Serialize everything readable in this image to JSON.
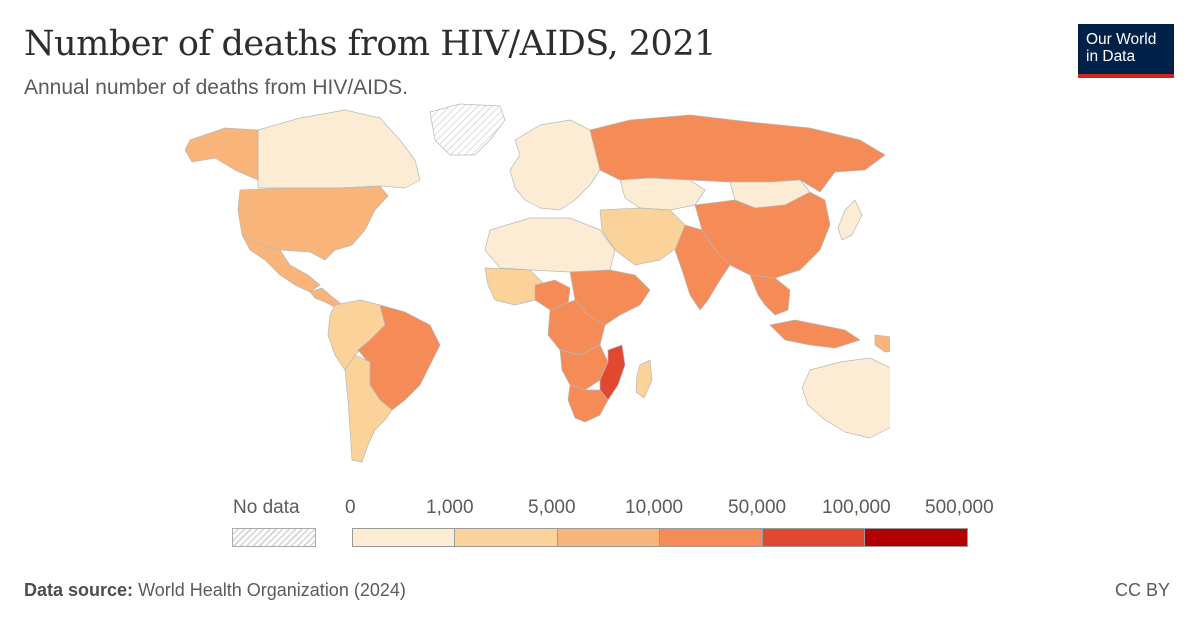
{
  "header": {
    "title": "Number of deaths from HIV/AIDS, 2021",
    "subtitle": "Annual number of deaths from HIV/AIDS."
  },
  "logo": {
    "line1": "Our World",
    "line2": "in Data"
  },
  "legend": {
    "no_data_label": "No data",
    "thresholds": [
      "0",
      "1,000",
      "5,000",
      "10,000",
      "50,000",
      "100,000",
      "500,000"
    ],
    "colors": [
      "#fdecd4",
      "#fbd39a",
      "#f9b47a",
      "#f58b57",
      "#e0482f",
      "#b20000"
    ]
  },
  "footer": {
    "source_label": "Data source:",
    "source_value": "World Health Organization (2024)",
    "license": "CC BY"
  },
  "map": {
    "regions": [
      {
        "name": "canada",
        "color": "#fdecd4"
      },
      {
        "name": "alaska",
        "color": "#f9b47a"
      },
      {
        "name": "greenland",
        "color": "nodata"
      },
      {
        "name": "united-states",
        "color": "#f9b47a"
      },
      {
        "name": "mexico",
        "color": "#f9b47a"
      },
      {
        "name": "central-america",
        "color": "#f9b47a"
      },
      {
        "name": "brazil",
        "color": "#f58b57"
      },
      {
        "name": "south-america-west",
        "color": "#fbd39a"
      },
      {
        "name": "argentina",
        "color": "#fbd39a"
      },
      {
        "name": "europe",
        "color": "#fdecd4"
      },
      {
        "name": "russia",
        "color": "#f58b57"
      },
      {
        "name": "kazakhstan",
        "color": "#fdecd4"
      },
      {
        "name": "mongolia",
        "color": "#fdecd4"
      },
      {
        "name": "china",
        "color": "#f58b57"
      },
      {
        "name": "india",
        "color": "#f58b57"
      },
      {
        "name": "middle-east",
        "color": "#fbd39a"
      },
      {
        "name": "southeast-asia",
        "color": "#f58b57"
      },
      {
        "name": "indonesia",
        "color": "#f58b57"
      },
      {
        "name": "japan",
        "color": "#fdecd4"
      },
      {
        "name": "north-africa",
        "color": "#fdecd4"
      },
      {
        "name": "west-africa",
        "color": "#fbd39a"
      },
      {
        "name": "nigeria",
        "color": "#f58b57"
      },
      {
        "name": "central-africa",
        "color": "#f58b57"
      },
      {
        "name": "east-africa",
        "color": "#f58b57"
      },
      {
        "name": "southern-africa",
        "color": "#f58b57"
      },
      {
        "name": "mozambique",
        "color": "#e0482f"
      },
      {
        "name": "south-africa",
        "color": "#f58b57"
      },
      {
        "name": "madagascar",
        "color": "#fbd39a"
      },
      {
        "name": "australia",
        "color": "#fdecd4"
      },
      {
        "name": "new-zealand",
        "color": "#fdecd4"
      },
      {
        "name": "papua-new-guinea",
        "color": "#f9b47a"
      }
    ]
  }
}
